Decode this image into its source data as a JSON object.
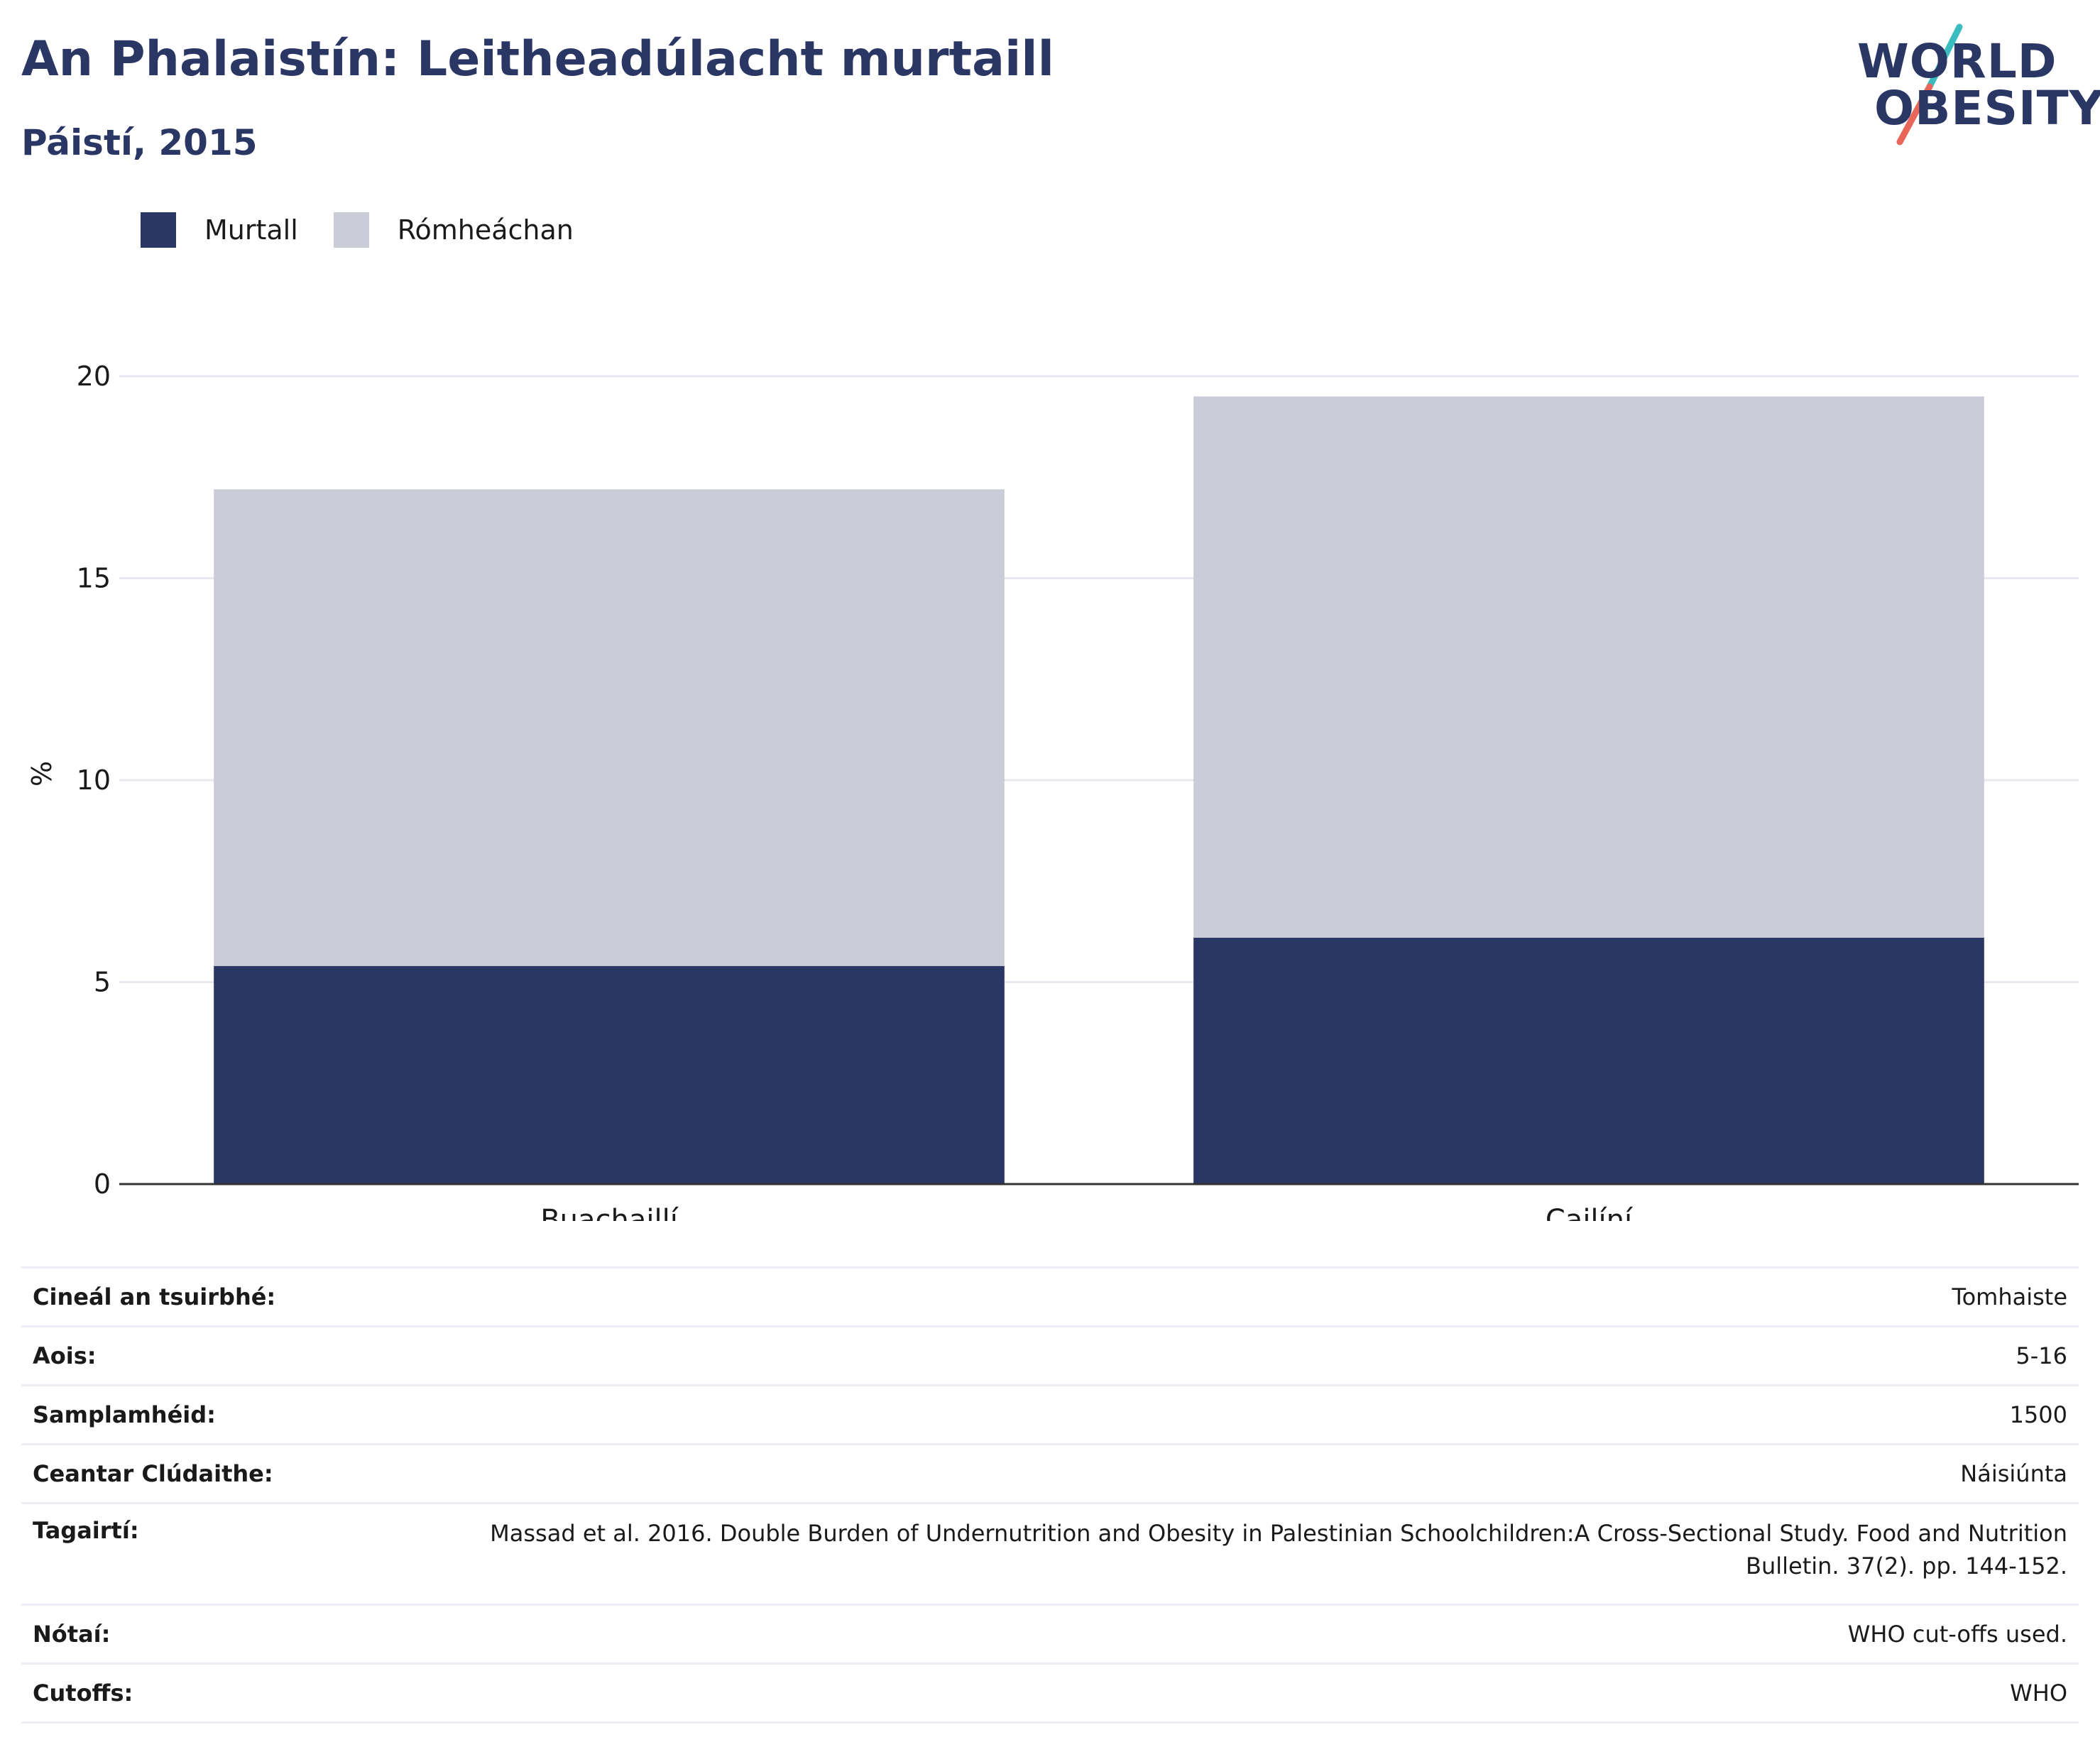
{
  "header": {
    "title": "An Phalaistín: Leitheadúlacht murtaill",
    "subtitle": "Páistí, 2015"
  },
  "logo": {
    "line1": "WORLD",
    "line2": "OBESITY",
    "accent_teal": "#3bbdc0",
    "accent_coral": "#e8675a"
  },
  "colors": {
    "obese": "#2a3765",
    "overweight": "#caccd8",
    "axis": "#333333",
    "grid": "#e8e8ee"
  },
  "chart_data": {
    "type": "bar",
    "stacked": true,
    "categories": [
      "Buachaillí",
      "Cailíní"
    ],
    "series": [
      {
        "name": "Murtall",
        "values": [
          5.4,
          6.1
        ]
      },
      {
        "name": "Rómheáchan",
        "values": [
          11.8,
          13.4
        ]
      }
    ],
    "ylabel": "%",
    "ylim": [
      0,
      20
    ],
    "yticks": [
      "0",
      "5",
      "10",
      "15",
      "20"
    ],
    "grid": true,
    "legend_position": "top-left"
  },
  "meta": [
    {
      "key": "Cineál an tsuirbhé:",
      "value": "Tomhaiste"
    },
    {
      "key": "Aois:",
      "value": "5-16"
    },
    {
      "key": "Samplamhéid:",
      "value": "1500"
    },
    {
      "key": "Ceantar Clúdaithe:",
      "value": "Náisiúnta"
    },
    {
      "key": "Tagairtí:",
      "value": "Massad et al. 2016. Double Burden of Undernutrition and Obesity in Palestinian Schoolchildren:A Cross-Sectional Study. Food and Nutrition Bulletin. 37(2). pp. 144-152."
    },
    {
      "key": "Nótaí:",
      "value": "WHO cut-offs used."
    },
    {
      "key": "Cutoffs:",
      "value": "WHO"
    }
  ]
}
